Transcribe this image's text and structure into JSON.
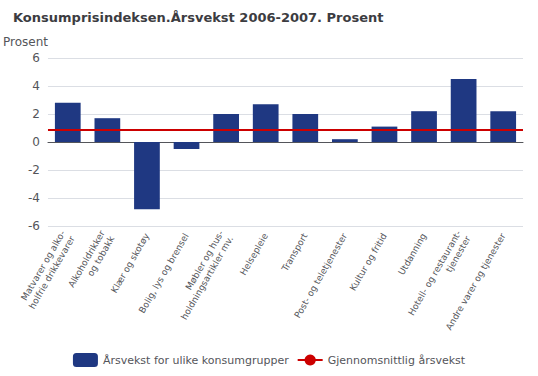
{
  "chart_data": {
    "type": "bar",
    "title": "Konsumprisindeksen.Årsvekst 2006-2007. Prosent",
    "ylabel": "Prosent",
    "categories": [
      "Matvarer og alko-\nholfrie drikkevarer",
      "Alkoholdrikker\nog tobakk",
      "Klær og skotøy",
      "Bolig, lys og brensel",
      "Møbler og hus-\nholdningsartikler mv.",
      "Helsepleie",
      "Transport",
      "Post- og teletjenester",
      "Kultur og fritid",
      "Utdanning",
      "Hotell- og restaurant-\ntjenester",
      "Andre varer og tjenester"
    ],
    "series": [
      {
        "name": "Årsvekst for ulike konsumgrupper",
        "type": "bar",
        "color": "#1F3882",
        "values": [
          2.8,
          1.7,
          -4.8,
          -0.5,
          2.0,
          2.7,
          2.0,
          0.2,
          1.1,
          2.2,
          4.5,
          2.2
        ]
      },
      {
        "name": "Gjennomsnittlig årsvekst",
        "type": "hline",
        "color": "#CC0000",
        "value": 0.9
      }
    ],
    "ylim": [
      -6,
      6
    ],
    "yticks": [
      -6,
      -4,
      -2,
      0,
      2,
      4,
      6
    ],
    "grid": true,
    "legend": "bottom"
  }
}
